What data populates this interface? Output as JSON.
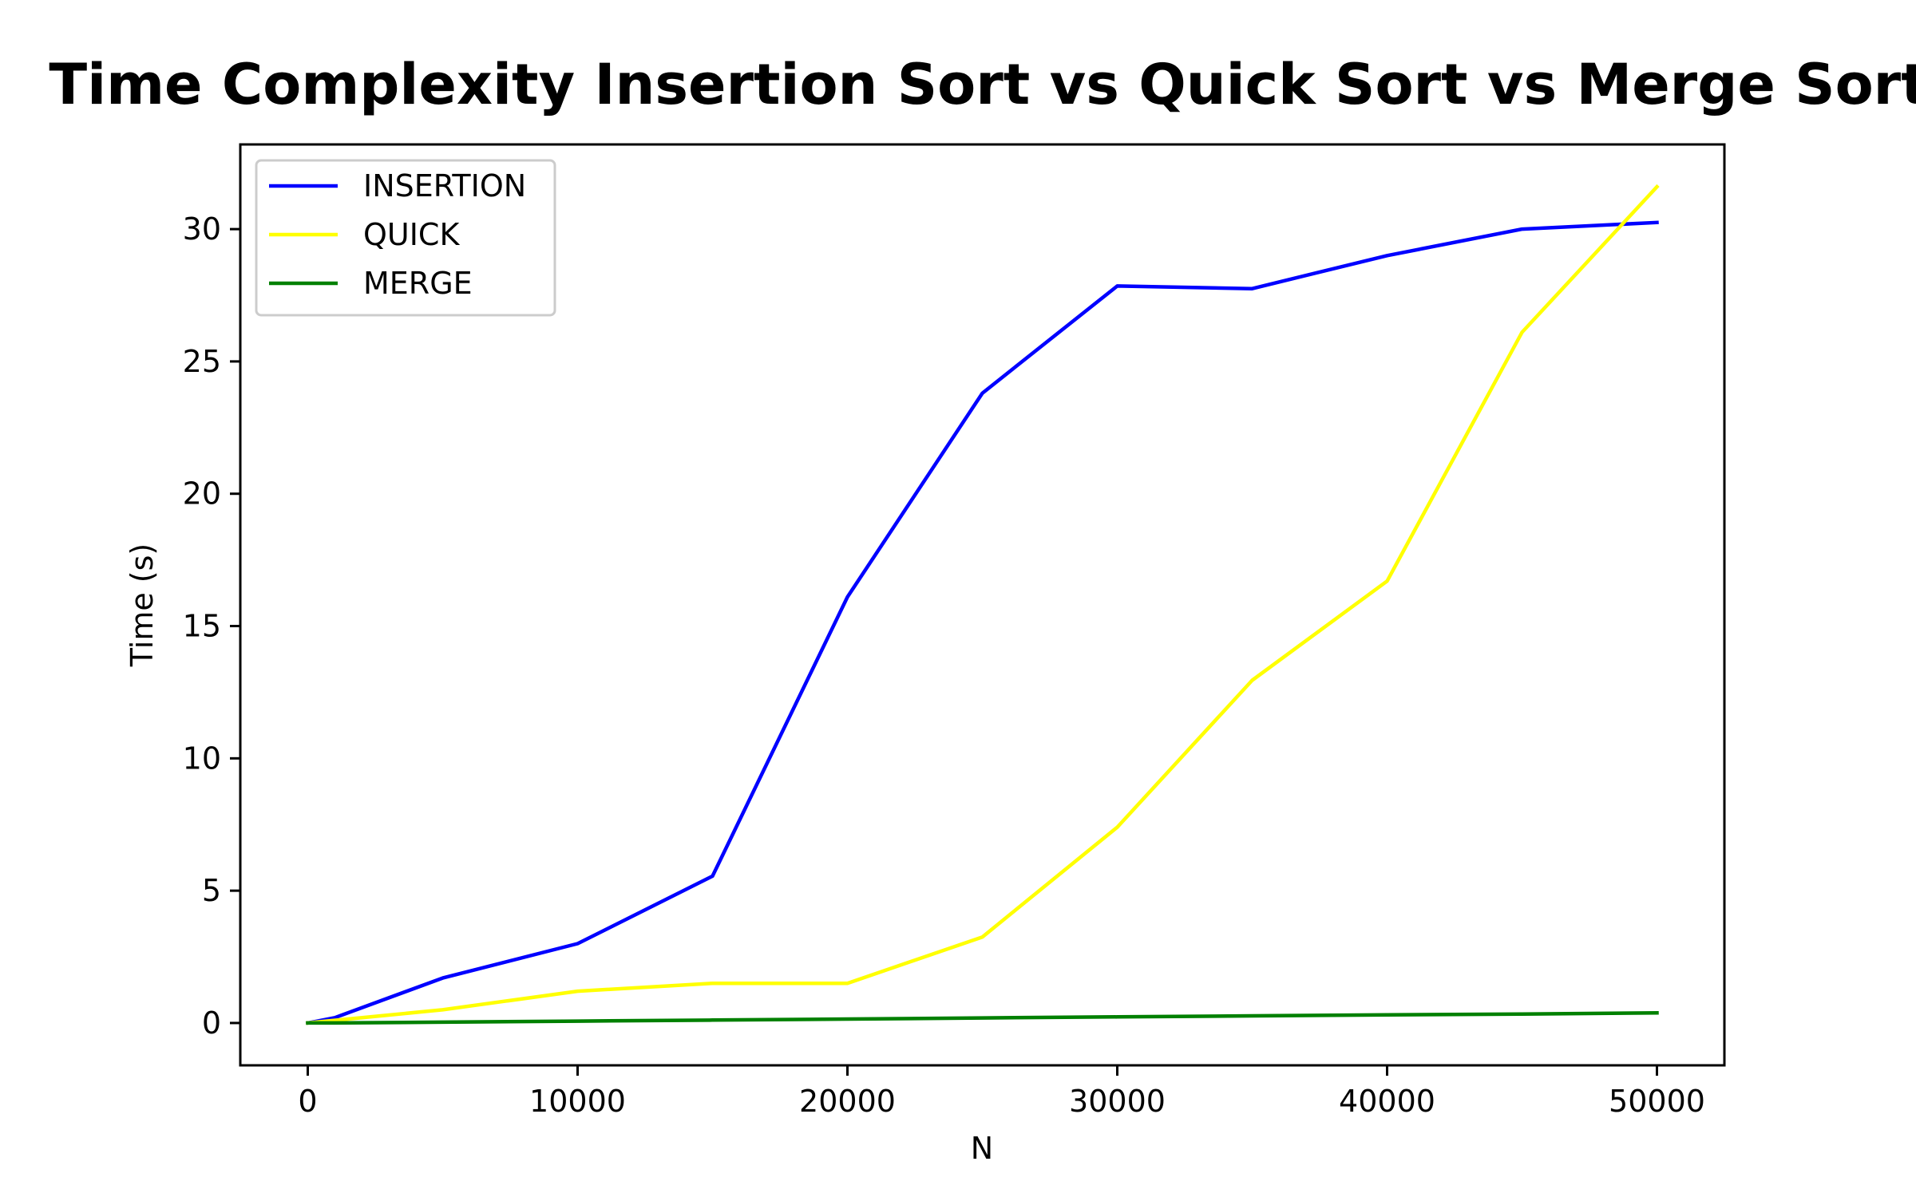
{
  "chart_data": {
    "type": "line",
    "title": "Time Complexity Insertion Sort vs Quick Sort vs Merge Sort",
    "xlabel": "N",
    "ylabel": "Time (s)",
    "xlim": [
      -2500,
      52500
    ],
    "ylim": [
      -1.6,
      33.2
    ],
    "xticks": [
      0,
      10000,
      20000,
      30000,
      40000,
      50000
    ],
    "yticks": [
      0,
      5,
      10,
      15,
      20,
      25,
      30
    ],
    "grid": false,
    "legend_position": "upper-left",
    "series": [
      {
        "name": "INSERTION",
        "color": "#0000ff",
        "x": [
          0,
          1000,
          5000,
          10000,
          15000,
          20000,
          25000,
          30000,
          35000,
          40000,
          45000,
          50000
        ],
        "y": [
          0.0,
          0.2,
          1.7,
          3.0,
          5.55,
          16.1,
          23.8,
          27.85,
          27.75,
          29.0,
          30.0,
          30.25
        ]
      },
      {
        "name": "QUICK",
        "color": "#ffff00",
        "x": [
          0,
          1000,
          5000,
          10000,
          15000,
          20000,
          25000,
          30000,
          35000,
          40000,
          45000,
          50000
        ],
        "y": [
          0.0,
          0.1,
          0.5,
          1.2,
          1.5,
          1.5,
          3.25,
          7.4,
          12.95,
          16.7,
          26.1,
          31.6
        ]
      },
      {
        "name": "MERGE",
        "color": "#008000",
        "x": [
          0,
          1000,
          5000,
          10000,
          15000,
          20000,
          25000,
          30000,
          35000,
          40000,
          45000,
          50000
        ],
        "y": [
          0.0,
          0.0,
          0.03,
          0.07,
          0.11,
          0.15,
          0.19,
          0.23,
          0.27,
          0.31,
          0.34,
          0.38
        ]
      }
    ]
  }
}
